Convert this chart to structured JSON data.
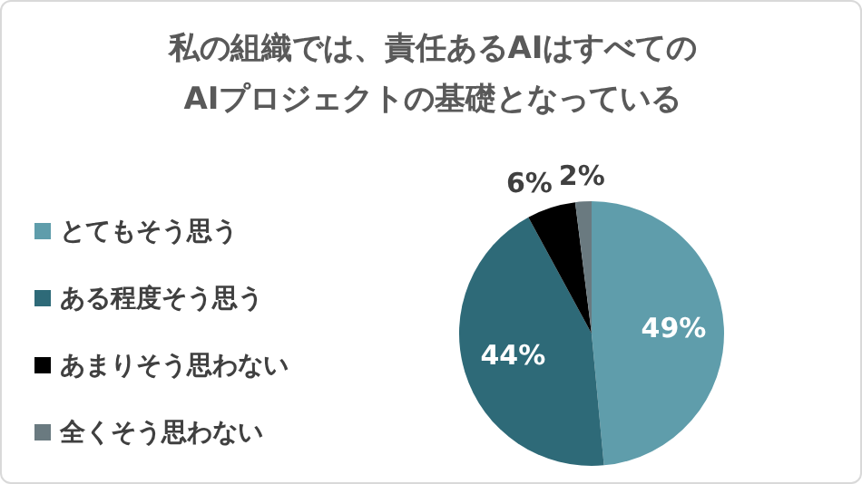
{
  "chart_data": {
    "type": "pie",
    "title": "私の組織では、責任あるAIはすべてのAIプロジェクトの基礎となっている",
    "categories": [
      "とてもそう思う",
      "ある程度そう思う",
      "あまりそう思わない",
      "全くそう思わない"
    ],
    "values": [
      49,
      44,
      6,
      2
    ],
    "colors": [
      "#5f9dab",
      "#2e6a78",
      "#000000",
      "#6a7a80"
    ],
    "value_labels": [
      "49%",
      "44%",
      "6%",
      "2%"
    ],
    "legend": "left"
  }
}
